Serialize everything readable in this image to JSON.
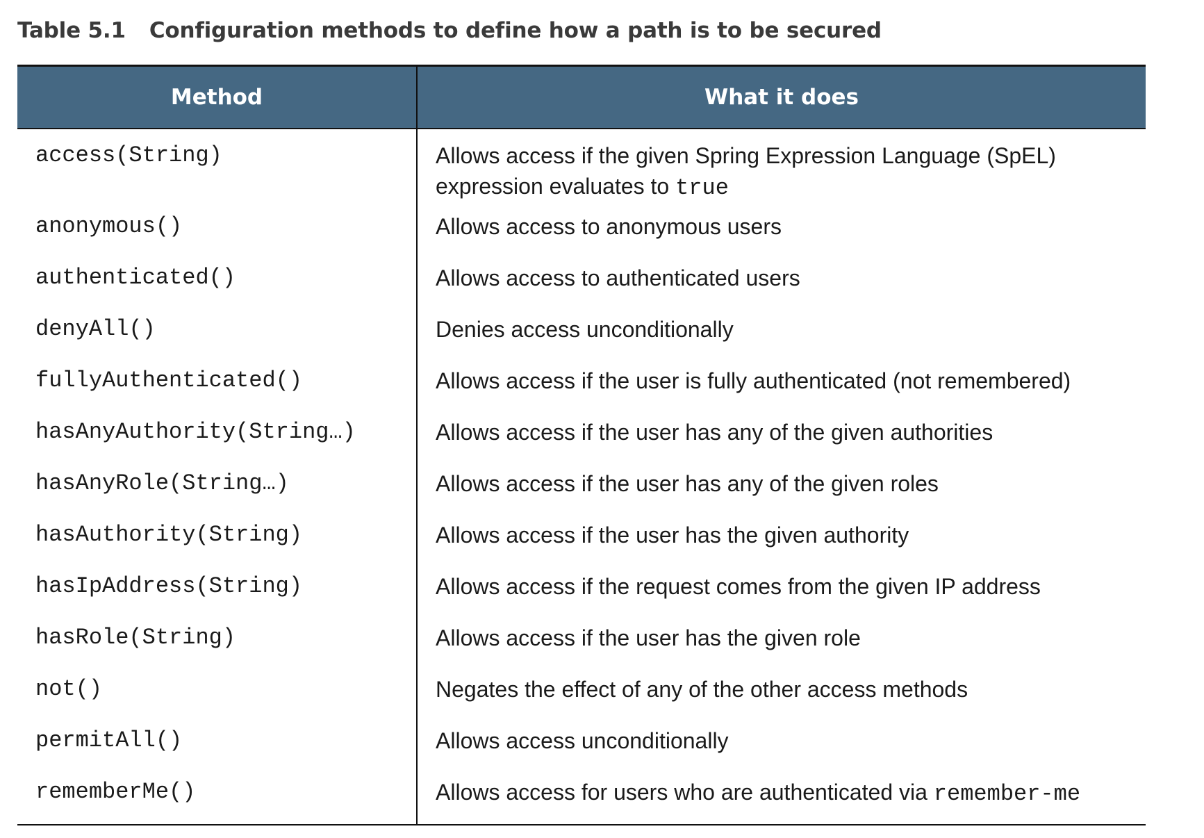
{
  "caption": {
    "number": "Table 5.1",
    "title": "Configuration methods to define how a path is to be secured"
  },
  "table": {
    "headers": {
      "method": "Method",
      "what": "What it does"
    },
    "rows": [
      {
        "method": "access(String)",
        "desc_line1": "Allows access if the given Spring Expression Language (SpEL)",
        "desc_line2": "expression evaluates to ",
        "desc_code": "true"
      },
      {
        "method": "anonymous()",
        "desc": "Allows access to anonymous users"
      },
      {
        "method": "authenticated()",
        "desc": "Allows access to authenticated users"
      },
      {
        "method": "denyAll()",
        "desc": "Denies access unconditionally"
      },
      {
        "method": "fullyAuthenticated()",
        "desc": "Allows access if the user is fully authenticated (not remembered)"
      },
      {
        "method": "hasAnyAuthority(String…)",
        "desc": "Allows access if the user has any of the given authorities"
      },
      {
        "method": "hasAnyRole(String…)",
        "desc": "Allows access if the user has any of the given roles"
      },
      {
        "method": "hasAuthority(String)",
        "desc": "Allows access if the user has the given authority"
      },
      {
        "method": "hasIpAddress(String)",
        "desc": "Allows access if the request comes from the given IP address"
      },
      {
        "method": "hasRole(String)",
        "desc": "Allows access if the user has the given role"
      },
      {
        "method": "not()",
        "desc": "Negates the effect of any of the other access methods"
      },
      {
        "method": "permitAll()",
        "desc": "Allows access unconditionally"
      },
      {
        "method": "rememberMe()",
        "desc": "Allows access for users who are authenticated via ",
        "desc_code": "remember-me"
      }
    ]
  },
  "colors": {
    "header_bg": "#456883",
    "header_text": "#ffffff",
    "caption_text": "#3a3a3a",
    "rule": "#111111"
  }
}
